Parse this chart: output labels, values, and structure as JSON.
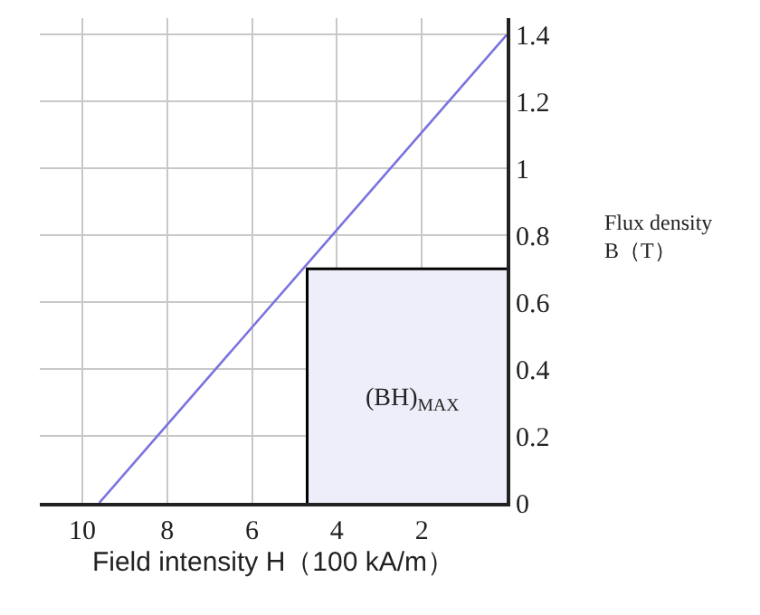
{
  "chart_data": {
    "type": "line",
    "xlabel": "Field intensity H（100 kA/m）",
    "ylabel": "Flux density\nB（T）",
    "series": [
      {
        "color": "#7a72e0",
        "x": [
          9.6,
          0
        ],
        "values": [
          0,
          1.4
        ]
      },
      {
        "type": "area",
        "color": "#eeeefa",
        "x": [
          4.7,
          4.7,
          0
        ],
        "values": [
          0,
          0.7,
          0.7
        ]
      }
    ],
    "annotations": [
      "(BH)$_{MAX}$"
    ],
    "xlim": [
      11,
      0
    ],
    "xticks": [
      10,
      8,
      6,
      4,
      2
    ],
    "ylim": [
      0,
      1.45
    ],
    "yticks": [
      0,
      0.2,
      0.4,
      0.6,
      0.8,
      1.0,
      1.2,
      1.4
    ],
    "grid": true
  }
}
